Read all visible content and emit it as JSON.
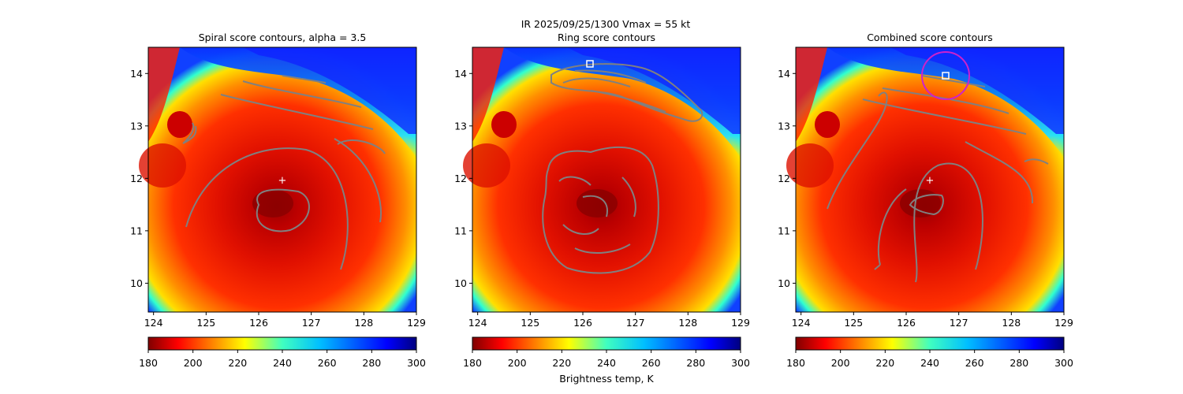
{
  "suptitle_line1": "IR  2025/09/25/1300    Vmax = 55 kt",
  "colorbar_label": "Brightness temp, K",
  "colormap": "jet",
  "colormap_reversed": true,
  "contour_color": "#808080",
  "marker_color": "#ffffff",
  "circle_color": "#cc22cc",
  "colorbar_range": [
    180,
    300
  ],
  "colorbar_ticks": [
    "180",
    "200",
    "220",
    "240",
    "260",
    "280",
    "300"
  ],
  "chart_data": [
    {
      "type": "heatmap",
      "title": "Spiral score contours, alpha =  3.5",
      "xlim": [
        123.9,
        129.0
      ],
      "ylim": [
        9.45,
        14.5
      ],
      "xticks": [
        "124",
        "125",
        "126",
        "127",
        "128",
        "129"
      ],
      "yticks": [
        "10",
        "11",
        "12",
        "13",
        "14"
      ],
      "center_marker": {
        "x": 126.45,
        "y": 11.95
      }
    },
    {
      "type": "heatmap",
      "title": "Ring score contours",
      "xlim": [
        123.9,
        129.0
      ],
      "ylim": [
        9.45,
        14.5
      ],
      "xticks": [
        "124",
        "125",
        "126",
        "127",
        "128",
        "129"
      ],
      "yticks": [
        "10",
        "11",
        "12",
        "13",
        "14"
      ],
      "square_marker": {
        "x": 126.12,
        "y": 14.15
      }
    },
    {
      "type": "heatmap",
      "title": "Combined score contours",
      "xlim": [
        123.9,
        129.0
      ],
      "ylim": [
        9.45,
        14.5
      ],
      "xticks": [
        "124",
        "125",
        "126",
        "127",
        "128",
        "129"
      ],
      "yticks": [
        "10",
        "11",
        "12",
        "13",
        "14"
      ],
      "center_marker": {
        "x": 126.43,
        "y": 11.95
      },
      "square_marker": {
        "x": 126.75,
        "y": 13.93
      },
      "circle": {
        "x": 126.75,
        "y": 13.93,
        "r": 0.45
      }
    }
  ]
}
